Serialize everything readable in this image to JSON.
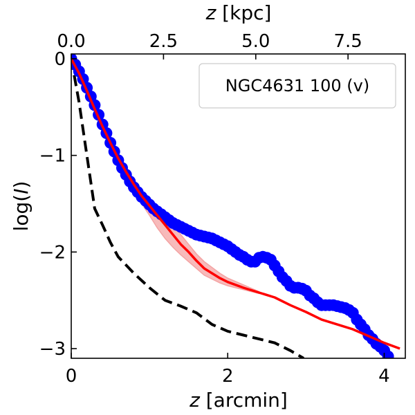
{
  "chart_data": {
    "type": "line",
    "title": "",
    "xlabel_var": "z",
    "xlabel_unit": " [arcmin]",
    "x2label_var": "z",
    "x2label_unit": " [kpc]",
    "ylabel_pre": "log(",
    "ylabel_var": "I",
    "ylabel_post": ")",
    "xlim": [
      0,
      4.27
    ],
    "ylim": [
      -3.1,
      0.05
    ],
    "x_ticks": [
      0,
      2,
      4
    ],
    "x_tick_labels": [
      "0",
      "2",
      "4"
    ],
    "y_ticks": [
      0,
      -1,
      -2,
      -3
    ],
    "y_tick_labels": [
      "0",
      "−1",
      "−2",
      "−3"
    ],
    "x2_ticks_kpc": [
      0.0,
      2.5,
      5.0,
      7.5
    ],
    "x2_tick_labels": [
      "0.0",
      "2.5",
      "5.0",
      "7.5"
    ],
    "arcmin_per_kpc": 0.4717,
    "legend": {
      "label": "NGC4631 100 (v)",
      "placement": "top-right"
    },
    "colors": {
      "data": "#0000ff",
      "model": "#ff0000",
      "band": "#f4a3a3",
      "psf": "#000000"
    },
    "series": [
      {
        "name": "data",
        "style": "points",
        "x": [
          0.0,
          0.05,
          0.1,
          0.15,
          0.2,
          0.25,
          0.3,
          0.35,
          0.4,
          0.45,
          0.5,
          0.55,
          0.6,
          0.65,
          0.7,
          0.75,
          0.8,
          0.85,
          0.9,
          0.95,
          1.0,
          1.05,
          1.1,
          1.15,
          1.2,
          1.25,
          1.3,
          1.35,
          1.4,
          1.45,
          1.5,
          1.55,
          1.6,
          1.65,
          1.7,
          1.75,
          1.8,
          1.85,
          1.9,
          1.95,
          2.0,
          2.05,
          2.1,
          2.15,
          2.2,
          2.25,
          2.3,
          2.35,
          2.4,
          2.45,
          2.5,
          2.55,
          2.6,
          2.65,
          2.7,
          2.75,
          2.8,
          2.85,
          2.9,
          2.95,
          3.0,
          3.05,
          3.1,
          3.15,
          3.2,
          3.25,
          3.3,
          3.35,
          3.4,
          3.45,
          3.5,
          3.55,
          3.6,
          3.65,
          3.7,
          3.75,
          3.8,
          3.85,
          3.9,
          3.95,
          4.0,
          4.05
        ],
        "y": [
          0.0,
          -0.06,
          -0.13,
          -0.21,
          -0.3,
          -0.39,
          -0.48,
          -0.58,
          -0.68,
          -0.77,
          -0.87,
          -0.96,
          -1.05,
          -1.13,
          -1.2,
          -1.27,
          -1.33,
          -1.38,
          -1.43,
          -1.47,
          -1.51,
          -1.55,
          -1.58,
          -1.61,
          -1.64,
          -1.67,
          -1.7,
          -1.72,
          -1.74,
          -1.76,
          -1.78,
          -1.8,
          -1.82,
          -1.83,
          -1.84,
          -1.85,
          -1.86,
          -1.88,
          -1.9,
          -1.92,
          -1.94,
          -1.97,
          -2.0,
          -2.03,
          -2.05,
          -2.08,
          -2.1,
          -2.1,
          -2.06,
          -2.05,
          -2.06,
          -2.08,
          -2.14,
          -2.2,
          -2.26,
          -2.3,
          -2.35,
          -2.37,
          -2.37,
          -2.38,
          -2.4,
          -2.45,
          -2.48,
          -2.52,
          -2.55,
          -2.55,
          -2.55,
          -2.55,
          -2.56,
          -2.57,
          -2.58,
          -2.6,
          -2.63,
          -2.7,
          -2.75,
          -2.8,
          -2.86,
          -2.9,
          -2.95,
          -2.98,
          -3.02,
          -3.08
        ]
      },
      {
        "name": "model",
        "style": "line",
        "x": [
          0.0,
          0.1,
          0.2,
          0.3,
          0.4,
          0.5,
          0.6,
          0.7,
          0.8,
          0.9,
          1.0,
          1.1,
          1.2,
          1.3,
          1.4,
          1.5,
          1.6,
          1.7,
          1.8,
          1.9,
          2.0,
          2.2,
          2.4,
          2.6,
          2.8,
          3.0,
          3.2,
          3.4,
          3.6,
          3.8,
          4.0,
          4.2
        ],
        "y": [
          0.0,
          -0.15,
          -0.33,
          -0.52,
          -0.7,
          -0.87,
          -1.03,
          -1.17,
          -1.3,
          -1.42,
          -1.52,
          -1.62,
          -1.72,
          -1.82,
          -1.92,
          -2.0,
          -2.09,
          -2.17,
          -2.22,
          -2.27,
          -2.31,
          -2.37,
          -2.42,
          -2.47,
          -2.55,
          -2.62,
          -2.7,
          -2.75,
          -2.8,
          -2.87,
          -2.94,
          -3.0
        ]
      },
      {
        "name": "model_band",
        "style": "band",
        "x": [
          0.8,
          0.9,
          1.0,
          1.1,
          1.2,
          1.3,
          1.4,
          1.5,
          1.6,
          1.7,
          1.8,
          1.9,
          2.0,
          2.2,
          2.4
        ],
        "y_low": [
          -1.36,
          -1.5,
          -1.62,
          -1.75,
          -1.86,
          -1.95,
          -2.03,
          -2.1,
          -2.17,
          -2.24,
          -2.28,
          -2.32,
          -2.35,
          -2.39,
          -2.43
        ],
        "y_high": [
          -1.25,
          -1.36,
          -1.44,
          -1.52,
          -1.6,
          -1.7,
          -1.82,
          -1.92,
          -2.02,
          -2.1,
          -2.16,
          -2.22,
          -2.27,
          -2.34,
          -2.41
        ]
      },
      {
        "name": "psf",
        "style": "dashed",
        "x": [
          0.0,
          0.1,
          0.2,
          0.3,
          0.4,
          0.5,
          0.6,
          0.8,
          1.0,
          1.2,
          1.4,
          1.6,
          1.8,
          2.0,
          2.2,
          2.4,
          2.6,
          2.8,
          2.97
        ],
        "y": [
          0.0,
          -0.45,
          -1.0,
          -1.55,
          -1.72,
          -1.9,
          -2.05,
          -2.22,
          -2.37,
          -2.5,
          -2.56,
          -2.63,
          -2.75,
          -2.82,
          -2.86,
          -2.9,
          -2.94,
          -3.02,
          -3.1
        ]
      }
    ]
  }
}
